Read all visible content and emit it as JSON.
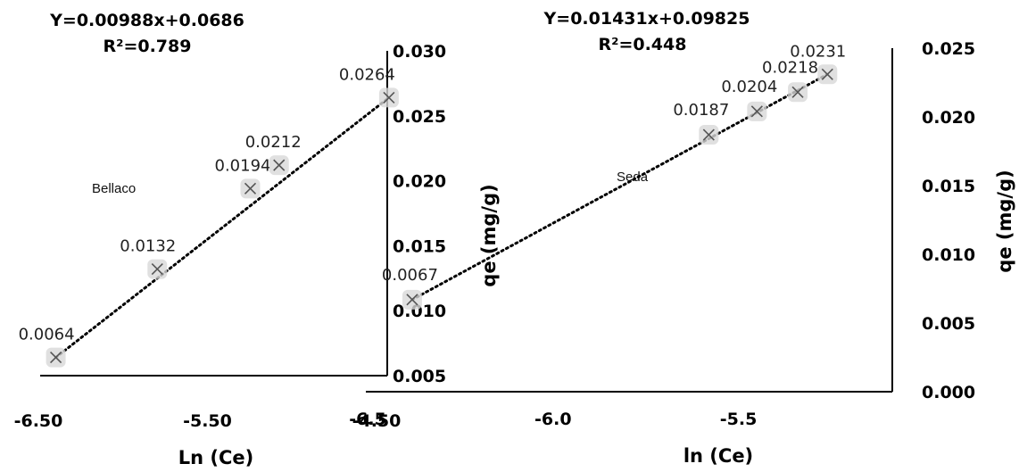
{
  "chart_data": [
    {
      "type": "scatter",
      "annotation": "Bellaco",
      "equation": "Y=0.00988x+0.0686",
      "r2": "R²=0.789",
      "xlabel": "Ln (Ce)",
      "ylabel": "qe (mg/g)",
      "xlim": [
        -6.5,
        -4.5
      ],
      "ylim": [
        0.005,
        0.03
      ],
      "x_ticks": [
        -6.5,
        -5.5,
        -4.5
      ],
      "x_tick_labels": [
        "-6.50",
        "-5.50",
        "-4.50"
      ],
      "y_ticks": [
        0.005,
        0.01,
        0.015,
        0.02,
        0.025,
        0.03
      ],
      "y_tick_labels": [
        "0.005",
        "0.010",
        "0.015",
        "0.020",
        "0.025",
        "0.030"
      ],
      "y_axis_position": "right",
      "grid": false,
      "trendline": "linear dotted",
      "points": [
        {
          "x": -6.46,
          "y": 0.0064,
          "label": "0.0064"
        },
        {
          "x": -5.86,
          "y": 0.0132,
          "label": "0.0132"
        },
        {
          "x": -5.31,
          "y": 0.0194,
          "label": "0.0194"
        },
        {
          "x": -5.14,
          "y": 0.0212,
          "label": "0.0212"
        },
        {
          "x": -4.49,
          "y": 0.0264,
          "label": "0.0264"
        }
      ]
    },
    {
      "type": "scatter",
      "annotation": "Seda",
      "equation": "Y=0.01431x+0.09825",
      "r2": "R²=0.448",
      "xlabel": "ln (Ce)",
      "ylabel": "qe (mg/g)",
      "xlim": [
        -6.5,
        -5.0
      ],
      "ylim": [
        0.0,
        0.025
      ],
      "x_ticks": [
        -6.5,
        -6.0,
        -5.5
      ],
      "x_tick_labels": [
        "-6.5",
        "-6.0",
        "-5.5"
      ],
      "y_ticks": [
        0.0,
        0.005,
        0.01,
        0.015,
        0.02,
        0.025
      ],
      "y_tick_labels": [
        "0.000",
        "0.005",
        "0.010",
        "0.015",
        "0.020",
        "0.025"
      ],
      "y_axis_position": "right",
      "grid": false,
      "trendline": "linear dotted",
      "points": [
        {
          "x": -6.38,
          "y": 0.0067,
          "label": "0.0067"
        },
        {
          "x": -5.58,
          "y": 0.0187,
          "label": "0.0187"
        },
        {
          "x": -5.45,
          "y": 0.0204,
          "label": "0.0204"
        },
        {
          "x": -5.34,
          "y": 0.0218,
          "label": "0.0218"
        },
        {
          "x": -5.26,
          "y": 0.0231,
          "label": "0.0231"
        }
      ]
    }
  ]
}
